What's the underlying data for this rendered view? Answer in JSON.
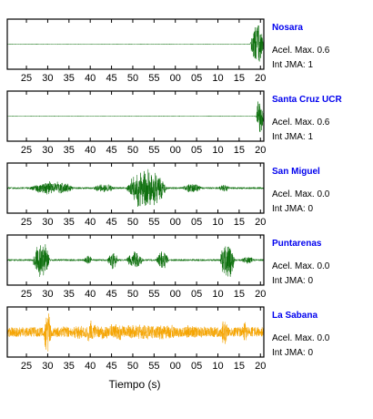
{
  "chart_data": {
    "type": "line",
    "xlabel": "Tiempo (s)",
    "ylabel": "",
    "xlim": [
      20.5,
      80.8
    ],
    "tick_labels": [
      "25",
      "30",
      "35",
      "40",
      "45",
      "50",
      "55",
      "00",
      "05",
      "10",
      "15",
      "20"
    ],
    "accel_label": "Acel. Max.",
    "jma_label": "Int JMA:",
    "stations": [
      {
        "name": "Nosara",
        "accel_max": "0.6",
        "int_jma": "1",
        "color": "#0a6e0a",
        "bursts": [
          {
            "start": 77.6,
            "end": 80.8,
            "amp": 0.95
          }
        ],
        "noise": 0.01
      },
      {
        "name": "Santa Cruz UCR",
        "accel_max": "0.6",
        "int_jma": "1",
        "color": "#0a6e0a",
        "bursts": [
          {
            "start": 79.0,
            "end": 80.8,
            "amp": 0.95
          }
        ],
        "noise": 0.01
      },
      {
        "name": "San Miguel",
        "accel_max": "0.0",
        "int_jma": "0",
        "color": "#0a6e0a",
        "bursts": [
          {
            "start": 25.5,
            "end": 36.5,
            "amp": 0.3
          },
          {
            "start": 40.5,
            "end": 46.0,
            "amp": 0.2
          },
          {
            "start": 48.5,
            "end": 58.0,
            "amp": 0.95
          },
          {
            "start": 61.5,
            "end": 66.5,
            "amp": 0.2
          },
          {
            "start": 70.0,
            "end": 73.0,
            "amp": 0.15
          }
        ],
        "noise": 0.04
      },
      {
        "name": "Puntarenas",
        "accel_max": "0.0",
        "int_jma": "0",
        "color": "#0a6e0a",
        "bursts": [
          {
            "start": 26.5,
            "end": 30.5,
            "amp": 0.85
          },
          {
            "start": 38.5,
            "end": 40.5,
            "amp": 0.22
          },
          {
            "start": 44.0,
            "end": 46.5,
            "amp": 0.45
          },
          {
            "start": 48.5,
            "end": 52.5,
            "amp": 0.4
          },
          {
            "start": 55.5,
            "end": 58.5,
            "amp": 0.45
          },
          {
            "start": 70.5,
            "end": 74.0,
            "amp": 0.9
          },
          {
            "start": 75.5,
            "end": 78.5,
            "amp": 0.2
          }
        ],
        "noise": 0.04
      },
      {
        "name": "La Sabana",
        "accel_max": "0.0",
        "int_jma": "0",
        "color": "#f5a400",
        "bursts": [
          {
            "start": 20.5,
            "end": 80.8,
            "amp": 0.35
          },
          {
            "start": 29.0,
            "end": 31.0,
            "amp": 0.9
          },
          {
            "start": 39.0,
            "end": 41.0,
            "amp": 0.55
          },
          {
            "start": 70.5,
            "end": 72.5,
            "amp": 0.65
          },
          {
            "start": 75.5,
            "end": 77.0,
            "amp": 0.5
          }
        ],
        "noise": 0.2
      }
    ]
  }
}
